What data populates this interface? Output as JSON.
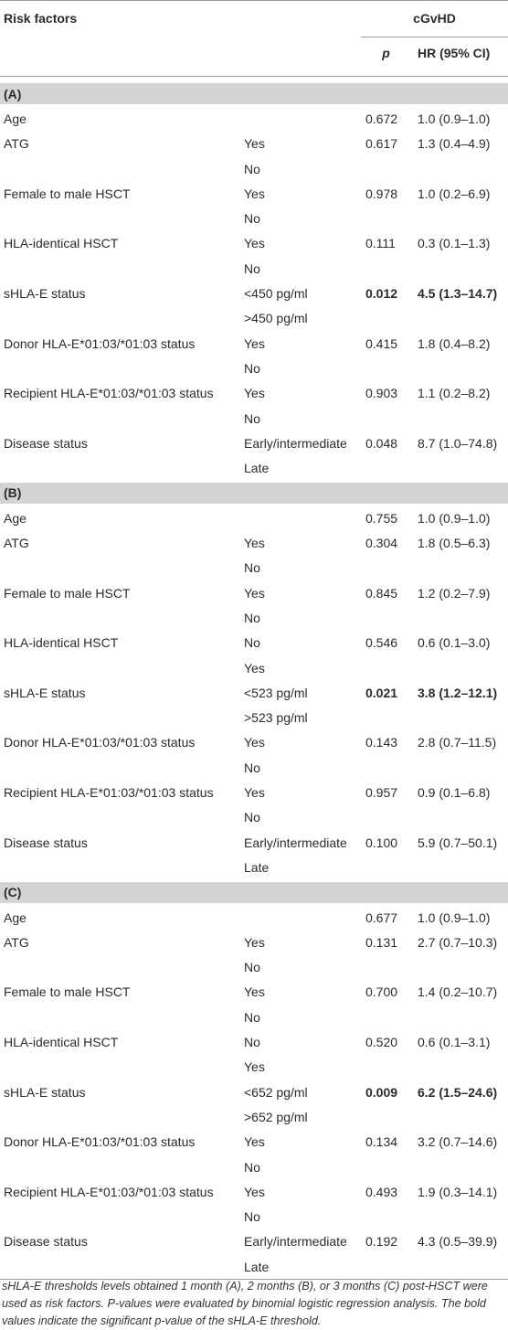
{
  "header": {
    "risk_factors": "Risk factors",
    "outcome": "cGvHD",
    "p": "p",
    "hr": "HR (95% CI)"
  },
  "sections": [
    {
      "label": "(A)",
      "rows": [
        {
          "factor": "Age",
          "p": "0.672",
          "hr": "1.0 (0.9–1.0)"
        },
        {
          "factor": "ATG",
          "level": "Yes",
          "p": "0.617",
          "hr": "1.3 (0.4–4.9)"
        },
        {
          "level": "No"
        },
        {
          "factor": "Female to male HSCT",
          "level": "Yes",
          "p": "0.978",
          "hr": "1.0 (0.2–6.9)"
        },
        {
          "level": "No"
        },
        {
          "factor": "HLA-identical HSCT",
          "level": "Yes",
          "p": "0.111",
          "hr": "0.3 (0.1–1.3)"
        },
        {
          "level": "No"
        },
        {
          "factor": "sHLA-E status",
          "level": "<450 pg/ml",
          "p": "0.012",
          "hr": "4.5 (1.3–14.7)",
          "bold": true
        },
        {
          "level": ">450 pg/ml"
        },
        {
          "factor": "Donor HLA-E*01:03/*01:03 status",
          "level": "Yes",
          "p": "0.415",
          "hr": "1.8 (0.4–8.2)"
        },
        {
          "level": "No"
        },
        {
          "factor": "Recipient HLA-E*01:03/*01:03 status",
          "level": "Yes",
          "p": "0.903",
          "hr": "1.1 (0.2–8.2)"
        },
        {
          "level": "No"
        },
        {
          "factor": "Disease status",
          "level": "Early/intermediate",
          "p": "0.048",
          "hr": "8.7 (1.0–74.8)"
        },
        {
          "level": "Late"
        }
      ]
    },
    {
      "label": "(B)",
      "rows": [
        {
          "factor": "Age",
          "p": "0.755",
          "hr": "1.0 (0.9–1.0)"
        },
        {
          "factor": "ATG",
          "level": "Yes",
          "p": "0.304",
          "hr": "1.8 (0.5–6.3)"
        },
        {
          "level": "No"
        },
        {
          "factor": "Female to male HSCT",
          "level": "Yes",
          "p": "0.845",
          "hr": "1.2 (0.2–7.9)"
        },
        {
          "level": "No"
        },
        {
          "factor": "HLA-identical HSCT",
          "level": "No",
          "p": "0.546",
          "hr": "0.6 (0.1–3.0)"
        },
        {
          "level": "Yes"
        },
        {
          "factor": "sHLA-E status",
          "level": "<523 pg/ml",
          "p": "0.021",
          "hr": "3.8 (1.2–12.1)",
          "bold": true
        },
        {
          "level": ">523 pg/ml"
        },
        {
          "factor": "Donor HLA-E*01:03/*01:03 status",
          "level": "Yes",
          "p": "0.143",
          "hr": "2.8 (0.7–11.5)"
        },
        {
          "level": "No"
        },
        {
          "factor": "Recipient HLA-E*01:03/*01:03 status",
          "level": "Yes",
          "p": "0.957",
          "hr": "0.9 (0.1–6.8)"
        },
        {
          "level": "No"
        },
        {
          "factor": "Disease status",
          "level": "Early/intermediate",
          "p": "0.100",
          "hr": "5.9 (0.7–50.1)"
        },
        {
          "level": "Late"
        }
      ]
    },
    {
      "label": "(C)",
      "rows": [
        {
          "factor": "Age",
          "p": "0.677",
          "hr": "1.0 (0.9–1.0)"
        },
        {
          "factor": "ATG",
          "level": "Yes",
          "p": "0.131",
          "hr": "2.7 (0.7–10.3)"
        },
        {
          "level": "No"
        },
        {
          "factor": "Female to male HSCT",
          "level": "Yes",
          "p": "0.700",
          "hr": "1.4 (0.2–10.7)"
        },
        {
          "level": "No"
        },
        {
          "factor": "HLA-identical HSCT",
          "level": "No",
          "p": "0.520",
          "hr": "0.6 (0.1–3.1)"
        },
        {
          "level": "Yes"
        },
        {
          "factor": "sHLA-E status",
          "level": "<652 pg/ml",
          "p": "0.009",
          "hr": "6.2 (1.5–24.6)",
          "bold": true
        },
        {
          "level": ">652 pg/ml"
        },
        {
          "factor": "Donor HLA-E*01:03/*01:03 status",
          "level": "Yes",
          "p": "0.134",
          "hr": "3.2 (0.7–14.6)"
        },
        {
          "level": "No"
        },
        {
          "factor": "Recipient HLA-E*01:03/*01:03 status",
          "level": "Yes",
          "p": "0.493",
          "hr": "1.9 (0.3–14.1)"
        },
        {
          "level": "No"
        },
        {
          "factor": "Disease status",
          "level": "Early/intermediate",
          "p": "0.192",
          "hr": "4.3 (0.5–39.9)"
        },
        {
          "level": "Late"
        }
      ]
    }
  ],
  "footnote": "sHLA-E thresholds levels obtained 1 month (A), 2 months (B), or 3 months (C) post-HSCT were used as risk factors. P-values were evaluated by binomial logistic regression analysis. The bold values indicate the significant p-value of the sHLA-E threshold."
}
